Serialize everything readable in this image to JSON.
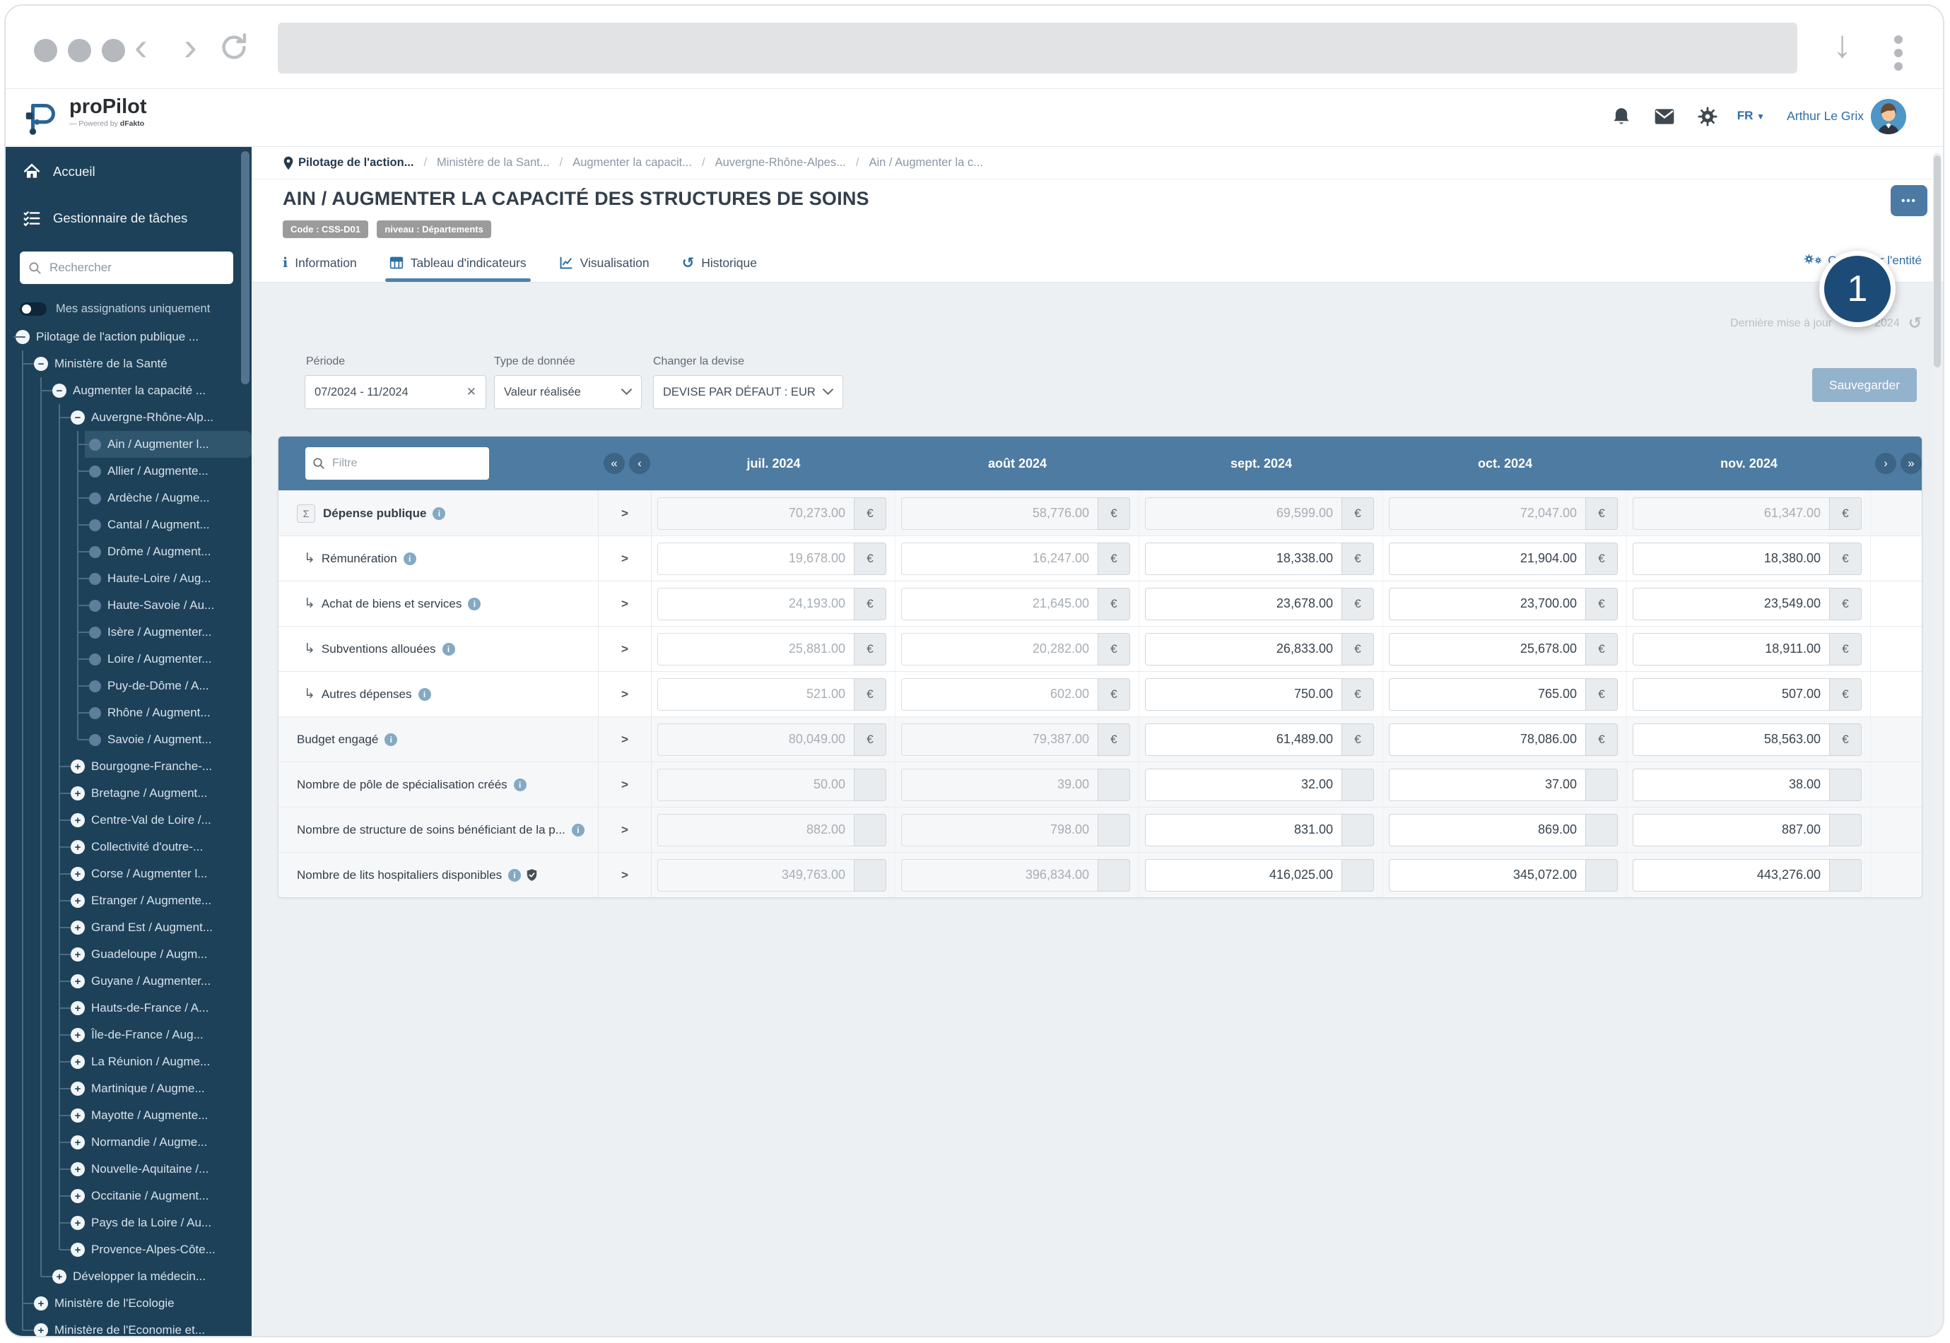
{
  "app": {
    "logo_text": "proPilot",
    "logo_tagline": "Powered by ",
    "logo_brand": "dFakto",
    "lang": "FR",
    "user_name": "Arthur Le Grix"
  },
  "sidebar": {
    "nav": [
      {
        "label": "Accueil",
        "icon": "home"
      },
      {
        "label": "Gestionnaire de tâches",
        "icon": "tasks"
      }
    ],
    "search_placeholder": "Rechercher",
    "toggle_label": "Mes assignations uniquement",
    "tree": [
      {
        "label": "Pilotage de l'action publique ...",
        "level": 0,
        "state": "minus"
      },
      {
        "label": "Ministère de la Santé",
        "level": 1,
        "state": "minus"
      },
      {
        "label": "Augmenter la capacité ...",
        "level": 2,
        "state": "minus"
      },
      {
        "label": "Auvergne-Rhône-Alp...",
        "level": 3,
        "state": "minus"
      },
      {
        "label": "Ain / Augmenter l...",
        "level": 4,
        "state": "leaf",
        "selected": true
      },
      {
        "label": "Allier / Augmente...",
        "level": 4,
        "state": "leaf"
      },
      {
        "label": "Ardèche / Augme...",
        "level": 4,
        "state": "leaf"
      },
      {
        "label": "Cantal / Augment...",
        "level": 4,
        "state": "leaf"
      },
      {
        "label": "Drôme / Augment...",
        "level": 4,
        "state": "leaf"
      },
      {
        "label": "Haute-Loire / Aug...",
        "level": 4,
        "state": "leaf"
      },
      {
        "label": "Haute-Savoie / Au...",
        "level": 4,
        "state": "leaf"
      },
      {
        "label": "Isère / Augmenter...",
        "level": 4,
        "state": "leaf"
      },
      {
        "label": "Loire / Augmenter...",
        "level": 4,
        "state": "leaf"
      },
      {
        "label": "Puy-de-Dôme / A...",
        "level": 4,
        "state": "leaf"
      },
      {
        "label": "Rhône / Augment...",
        "level": 4,
        "state": "leaf"
      },
      {
        "label": "Savoie / Augment...",
        "level": 4,
        "state": "leaf"
      },
      {
        "label": "Bourgogne-Franche-...",
        "level": 3,
        "state": "plus"
      },
      {
        "label": "Bretagne / Augment...",
        "level": 3,
        "state": "plus"
      },
      {
        "label": "Centre-Val de Loire /...",
        "level": 3,
        "state": "plus"
      },
      {
        "label": "Collectivité d'outre-...",
        "level": 3,
        "state": "plus"
      },
      {
        "label": "Corse / Augmenter l...",
        "level": 3,
        "state": "plus"
      },
      {
        "label": "Etranger / Augmente...",
        "level": 3,
        "state": "plus"
      },
      {
        "label": "Grand Est / Augment...",
        "level": 3,
        "state": "plus"
      },
      {
        "label": "Guadeloupe / Augm...",
        "level": 3,
        "state": "plus"
      },
      {
        "label": "Guyane / Augmenter...",
        "level": 3,
        "state": "plus"
      },
      {
        "label": "Hauts-de-France / A...",
        "level": 3,
        "state": "plus"
      },
      {
        "label": "Île-de-France / Aug...",
        "level": 3,
        "state": "plus"
      },
      {
        "label": "La Réunion / Augme...",
        "level": 3,
        "state": "plus"
      },
      {
        "label": "Martinique / Augme...",
        "level": 3,
        "state": "plus"
      },
      {
        "label": "Mayotte / Augmente...",
        "level": 3,
        "state": "plus"
      },
      {
        "label": "Normandie / Augme...",
        "level": 3,
        "state": "plus"
      },
      {
        "label": "Nouvelle-Aquitaine /...",
        "level": 3,
        "state": "plus"
      },
      {
        "label": "Occitanie / Augment...",
        "level": 3,
        "state": "plus"
      },
      {
        "label": "Pays de la Loire / Au...",
        "level": 3,
        "state": "plus"
      },
      {
        "label": "Provence-Alpes-Côte...",
        "level": 3,
        "state": "plus"
      },
      {
        "label": "Développer la médecin...",
        "level": 2,
        "state": "plus"
      },
      {
        "label": "Ministère de l'Ecologie",
        "level": 1,
        "state": "plus"
      },
      {
        "label": "Ministère de l'Economie et...",
        "level": 1,
        "state": "plus"
      }
    ]
  },
  "breadcrumb": [
    "Pilotage de l'action...",
    "Ministère de la Sant...",
    "Augmenter la capacit...",
    "Auvergne-Rhône-Alpes...",
    "Ain / Augmenter la c..."
  ],
  "page": {
    "title": "AIN / AUGMENTER LA CAPACITÉ DES STRUCTURES DE SOINS",
    "badges": [
      "Code : CSS-D01",
      "niveau : Départements"
    ],
    "more_label": "•••",
    "tabs": [
      {
        "label": "Information",
        "icon": "info",
        "active": false
      },
      {
        "label": "Tableau d'indicateurs",
        "icon": "table",
        "active": true
      },
      {
        "label": "Visualisation",
        "icon": "chart",
        "active": false
      },
      {
        "label": "Historique",
        "icon": "history",
        "active": false
      }
    ],
    "configure_label": "Configurer l'entité",
    "last_update_prefix": "Dernière mise à jour",
    "last_update_suffix": "2024",
    "annotation": "1"
  },
  "filters": {
    "periode_label": "Période",
    "periode_value": "07/2024 - 11/2024",
    "type_label": "Type de donnée",
    "type_value": "Valeur réalisée",
    "devise_label": "Changer la devise",
    "devise_value": "DEVISE PAR DÉFAUT : EUR",
    "save_button": "Sauvegarder"
  },
  "table": {
    "filter_placeholder": "Filtre",
    "months": [
      "juil. 2024",
      "août 2024",
      "sept. 2024",
      "oct. 2024",
      "nov. 2024"
    ],
    "readonly_month_indexes": [
      0,
      1
    ],
    "rows": [
      {
        "label": "Dépense publique",
        "kind": "parent",
        "bold": true,
        "sum_icon": true,
        "info": true,
        "shield": false,
        "unit": "€",
        "readonly_all": true,
        "values": [
          "70,273.00",
          "58,776.00",
          "69,599.00",
          "72,047.00",
          "61,347.00"
        ]
      },
      {
        "label": "Rémunération",
        "kind": "child",
        "bold": false,
        "sum_icon": false,
        "info": true,
        "shield": false,
        "unit": "€",
        "readonly_all": false,
        "values": [
          "19,678.00",
          "16,247.00",
          "18,338.00",
          "21,904.00",
          "18,380.00"
        ]
      },
      {
        "label": "Achat de biens et services",
        "kind": "child",
        "bold": false,
        "sum_icon": false,
        "info": true,
        "shield": false,
        "unit": "€",
        "readonly_all": false,
        "values": [
          "24,193.00",
          "21,645.00",
          "23,678.00",
          "23,700.00",
          "23,549.00"
        ]
      },
      {
        "label": "Subventions allouées",
        "kind": "child",
        "bold": false,
        "sum_icon": false,
        "info": true,
        "shield": false,
        "unit": "€",
        "readonly_all": false,
        "values": [
          "25,881.00",
          "20,282.00",
          "26,833.00",
          "25,678.00",
          "18,911.00"
        ]
      },
      {
        "label": "Autres dépenses",
        "kind": "child",
        "bold": false,
        "sum_icon": false,
        "info": true,
        "shield": false,
        "unit": "€",
        "readonly_all": false,
        "values": [
          "521.00",
          "602.00",
          "750.00",
          "765.00",
          "507.00"
        ]
      },
      {
        "label": "Budget engagé",
        "kind": "parent",
        "bold": false,
        "sum_icon": false,
        "info": true,
        "shield": false,
        "unit": "€",
        "readonly_all": false,
        "values": [
          "80,049.00",
          "79,387.00",
          "61,489.00",
          "78,086.00",
          "58,563.00"
        ]
      },
      {
        "label": "Nombre de pôle de spécialisation créés",
        "kind": "parent",
        "bold": false,
        "sum_icon": false,
        "info": true,
        "shield": false,
        "unit": "",
        "readonly_all": false,
        "values": [
          "50.00",
          "39.00",
          "32.00",
          "37.00",
          "38.00"
        ]
      },
      {
        "label": "Nombre de structure de soins bénéficiant de la p...",
        "kind": "parent",
        "bold": false,
        "sum_icon": false,
        "info": true,
        "shield": false,
        "unit": "",
        "readonly_all": false,
        "values": [
          "882.00",
          "798.00",
          "831.00",
          "869.00",
          "887.00"
        ]
      },
      {
        "label": "Nombre de lits hospitaliers disponibles",
        "kind": "parent",
        "bold": false,
        "sum_icon": false,
        "info": true,
        "shield": true,
        "unit": "",
        "readonly_all": false,
        "values": [
          "349,763.00",
          "396,834.00",
          "416,025.00",
          "345,072.00",
          "443,276.00"
        ]
      }
    ]
  }
}
